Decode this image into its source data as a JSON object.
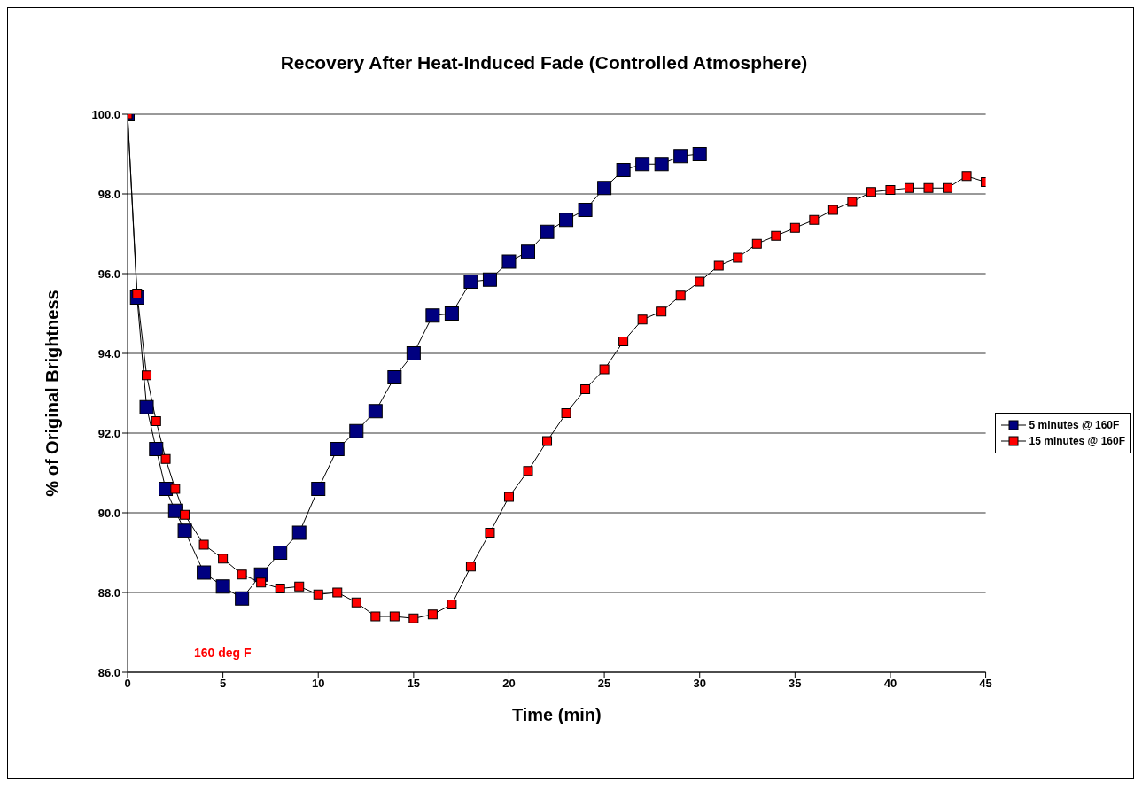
{
  "chart_data": {
    "type": "line",
    "title": "Recovery After Heat-Induced Fade (Controlled Atmosphere)",
    "xlabel": "Time (min)",
    "ylabel": "% of Original Brightness",
    "xlim": [
      0,
      45
    ],
    "xticks": [
      0,
      5,
      10,
      15,
      20,
      25,
      30,
      35,
      40,
      45
    ],
    "ylim": [
      86,
      100
    ],
    "yticks": [
      {
        "value": 86,
        "label": "86.0"
      },
      {
        "value": 88,
        "label": "88.0"
      },
      {
        "value": 90,
        "label": "90.0"
      },
      {
        "value": 92,
        "label": "92.0"
      },
      {
        "value": 94,
        "label": "94.0"
      },
      {
        "value": 96,
        "label": "96.0"
      },
      {
        "value": 98,
        "label": "98.0"
      },
      {
        "value": 100,
        "label": "100.0"
      }
    ],
    "grid": "y",
    "legend": "right",
    "marker": "square",
    "line_style": "solid",
    "annotations": [
      "160 deg F"
    ],
    "series": [
      {
        "name": "5 minutes @ 160F",
        "color": "#000080",
        "x": [
          0,
          0.5,
          1,
          1.5,
          2,
          2.5,
          3,
          4,
          5,
          6,
          7,
          8,
          9,
          10,
          11,
          12,
          13,
          14,
          15,
          16,
          17,
          18,
          19,
          20,
          21,
          22,
          23,
          24,
          25,
          26,
          27,
          28,
          29,
          30
        ],
        "values": [
          100,
          95.4,
          92.65,
          91.6,
          90.6,
          90.05,
          89.55,
          88.5,
          88.15,
          87.85,
          88.45,
          89.0,
          89.5,
          90.6,
          91.6,
          92.05,
          92.55,
          93.4,
          94.0,
          94.95,
          95.0,
          95.8,
          95.85,
          96.3,
          96.55,
          97.05,
          97.35,
          97.6,
          98.15,
          98.6,
          98.75,
          98.75,
          98.95,
          99.0
        ]
      },
      {
        "name": "15 minutes @ 160F",
        "color": "#ff0000",
        "x": [
          0,
          0.5,
          1,
          1.5,
          2,
          2.5,
          3,
          4,
          5,
          6,
          7,
          8,
          9,
          10,
          11,
          12,
          13,
          14,
          15,
          16,
          17,
          18,
          19,
          20,
          21,
          22,
          23,
          24,
          25,
          26,
          27,
          28,
          29,
          30,
          31,
          32,
          33,
          34,
          35,
          36,
          37,
          38,
          39,
          40,
          41,
          42,
          43,
          44,
          45
        ],
        "values": [
          100,
          95.5,
          93.45,
          92.3,
          91.35,
          90.6,
          89.95,
          89.2,
          88.85,
          88.45,
          88.25,
          88.1,
          88.15,
          87.95,
          88.0,
          87.75,
          87.4,
          87.4,
          87.35,
          87.45,
          87.7,
          88.65,
          89.5,
          90.4,
          91.05,
          91.8,
          92.5,
          93.1,
          93.6,
          94.3,
          94.85,
          95.05,
          95.45,
          95.8,
          96.2,
          96.4,
          96.75,
          96.95,
          97.15,
          97.35,
          97.6,
          97.8,
          98.05,
          98.1,
          98.15,
          98.15,
          98.15,
          98.45,
          98.3
        ]
      }
    ]
  }
}
